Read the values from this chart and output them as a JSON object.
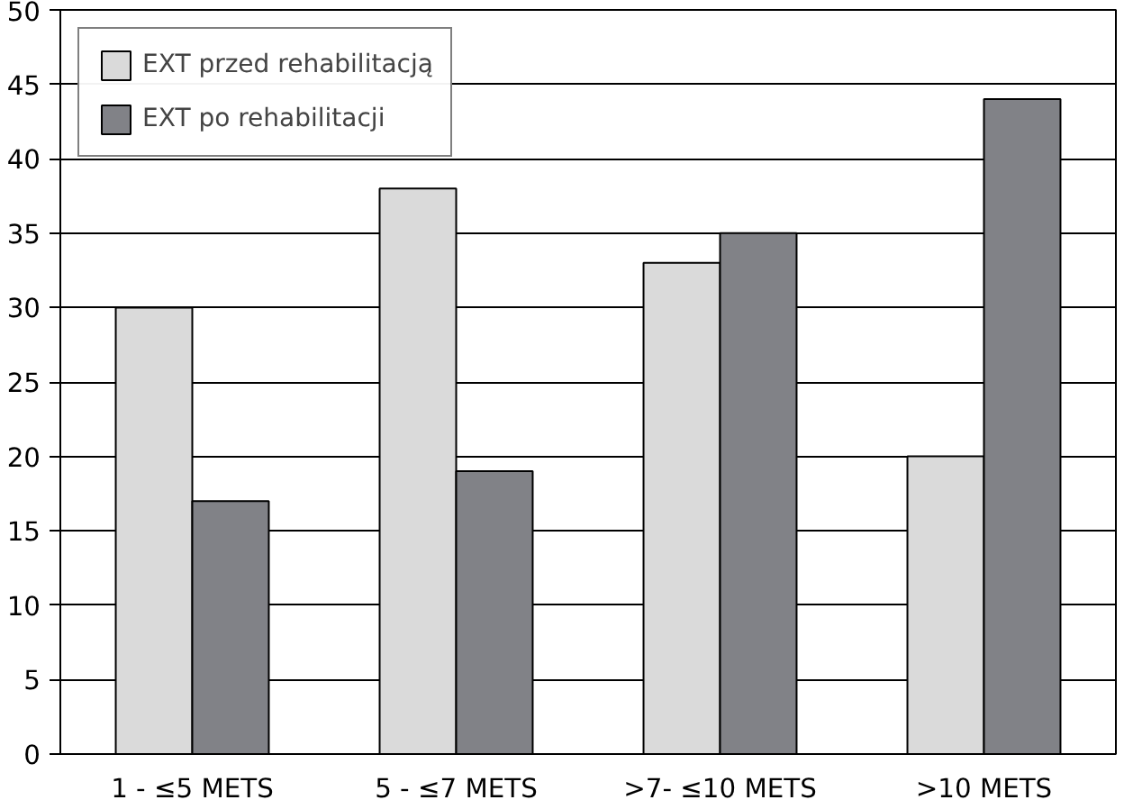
{
  "chart_data": {
    "type": "bar",
    "categories": [
      "1 - ≤5 METS",
      "5 - ≤7 METS",
      ">7- ≤10 METS",
      ">10 METS"
    ],
    "series": [
      {
        "name": "EXT przed rehabilitacją",
        "color": "#dadada",
        "values": [
          30,
          38,
          33,
          20
        ]
      },
      {
        "name": "EXT po rehabilitacji",
        "color": "#818287",
        "values": [
          17,
          19,
          35,
          44
        ]
      }
    ],
    "ylim": [
      0,
      50
    ],
    "yticks": [
      0,
      5,
      10,
      15,
      20,
      25,
      30,
      35,
      40,
      45,
      50
    ],
    "grid": "y",
    "legend": "top left"
  }
}
